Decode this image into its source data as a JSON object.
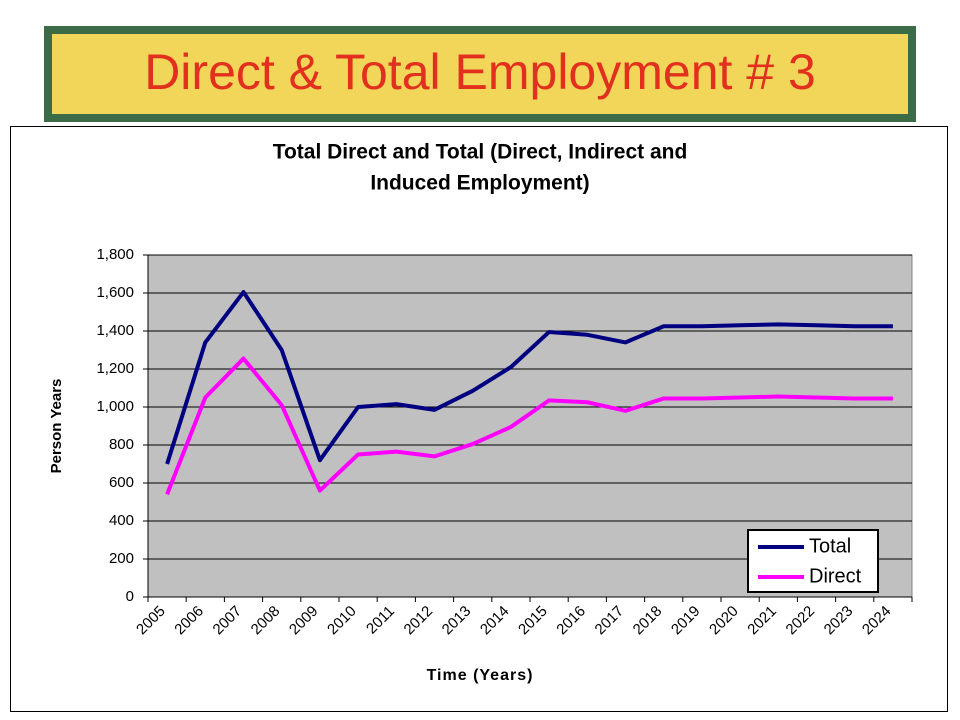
{
  "slide_title": "Direct & Total Employment # 3",
  "chart_data": {
    "type": "line",
    "title": [
      "Total Direct and Total (Direct, Indirect and",
      "Induced Employment)"
    ],
    "x_label": "Time (Years)",
    "y_label": "Person Years",
    "categories": [
      "2005",
      "2006",
      "2007",
      "2008",
      "2009",
      "2010",
      "2011",
      "2012",
      "2013",
      "2014",
      "2015",
      "2016",
      "2017",
      "2018",
      "2019",
      "2020",
      "2021",
      "2022",
      "2023",
      "2024"
    ],
    "series": [
      {
        "name": "Total",
        "color": "#000080",
        "values": [
          700,
          1340,
          1605,
          1300,
          720,
          1000,
          1015,
          985,
          1085,
          1210,
          1395,
          1380,
          1340,
          1425,
          1425,
          1430,
          1435,
          1430,
          1425,
          1425
        ]
      },
      {
        "name": "Direct",
        "color": "#ff00ff",
        "values": [
          540,
          1050,
          1255,
          1010,
          560,
          750,
          765,
          740,
          805,
          895,
          1035,
          1025,
          980,
          1045,
          1045,
          1050,
          1055,
          1050,
          1045,
          1045
        ]
      }
    ],
    "ylim": [
      0,
      1800
    ],
    "yticks": [
      0,
      200,
      400,
      600,
      800,
      {
        "value": 1000,
        "label": "1,000"
      },
      {
        "value": 1200,
        "label": "1,200"
      },
      {
        "value": 1400,
        "label": "1,400"
      },
      {
        "value": 1600,
        "label": "1,600"
      },
      {
        "value": 1800,
        "label": "1,800"
      }
    ],
    "grid": true,
    "legend": "lower-right"
  }
}
